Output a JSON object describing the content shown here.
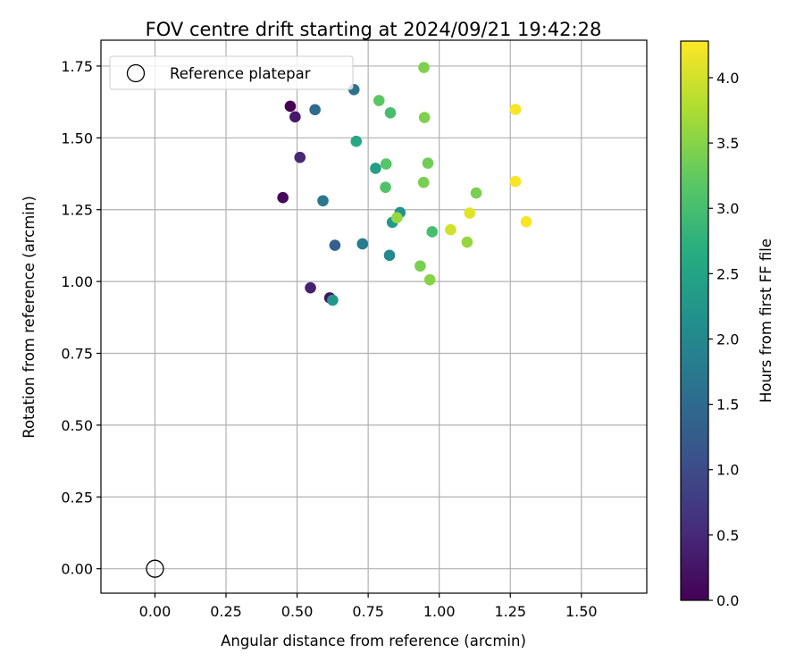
{
  "chart_data": {
    "type": "scatter",
    "title": "FOV centre drift starting at 2024/09/21 19:42:28",
    "xlabel": "Angular distance from reference (arcmin)",
    "ylabel": "Rotation from reference (arcmin)",
    "xlim": [
      -0.19,
      1.73
    ],
    "ylim": [
      -0.085,
      1.84
    ],
    "xticks": [
      "0.00",
      "0.25",
      "0.50",
      "0.75",
      "1.00",
      "1.25",
      "1.50"
    ],
    "xtick_values": [
      0,
      0.25,
      0.5,
      0.75,
      1.0,
      1.25,
      1.5
    ],
    "yticks": [
      "0.00",
      "0.25",
      "0.50",
      "0.75",
      "1.00",
      "1.25",
      "1.50",
      "1.75"
    ],
    "ytick_values": [
      0,
      0.25,
      0.5,
      0.75,
      1.0,
      1.25,
      1.5,
      1.75
    ],
    "grid": true,
    "legend": {
      "position": "top-left",
      "entries": [
        {
          "label": "Reference platepar",
          "marker": "open-circle"
        }
      ]
    },
    "reference_point": {
      "x": 0.0,
      "y": 0.0
    },
    "colorbar": {
      "label": "Hours from first FF file",
      "colormap": "viridis",
      "range": [
        0.0,
        4.28
      ],
      "ticks": [
        "0.0",
        "0.5",
        "1.0",
        "1.5",
        "2.0",
        "2.5",
        "3.0",
        "3.5",
        "4.0"
      ],
      "tick_values": [
        0.0,
        0.5,
        1.0,
        1.5,
        2.0,
        2.5,
        3.0,
        3.5,
        4.0
      ]
    },
    "points": [
      {
        "x": 0.476,
        "y": 1.61,
        "c": 0.0
      },
      {
        "x": 0.45,
        "y": 1.292,
        "c": 0.1
      },
      {
        "x": 0.615,
        "y": 0.943,
        "c": 0.2
      },
      {
        "x": 0.493,
        "y": 1.573,
        "c": 0.3
      },
      {
        "x": 0.547,
        "y": 0.978,
        "c": 0.4
      },
      {
        "x": 0.51,
        "y": 1.432,
        "c": 0.5
      },
      {
        "x": 0.633,
        "y": 1.126,
        "c": 1.3
      },
      {
        "x": 0.563,
        "y": 1.598,
        "c": 1.5
      },
      {
        "x": 0.7,
        "y": 1.668,
        "c": 1.6
      },
      {
        "x": 0.591,
        "y": 1.281,
        "c": 1.7
      },
      {
        "x": 0.73,
        "y": 1.131,
        "c": 1.8
      },
      {
        "x": 0.825,
        "y": 1.091,
        "c": 2.0
      },
      {
        "x": 0.862,
        "y": 1.24,
        "c": 2.2
      },
      {
        "x": 0.625,
        "y": 0.935,
        "c": 2.25
      },
      {
        "x": 0.835,
        "y": 1.206,
        "c": 2.3
      },
      {
        "x": 0.776,
        "y": 1.394,
        "c": 2.4
      },
      {
        "x": 0.708,
        "y": 1.488,
        "c": 2.6
      },
      {
        "x": 0.828,
        "y": 1.587,
        "c": 3.0
      },
      {
        "x": 0.975,
        "y": 1.173,
        "c": 3.0
      },
      {
        "x": 0.811,
        "y": 1.328,
        "c": 3.1
      },
      {
        "x": 0.813,
        "y": 1.409,
        "c": 3.15
      },
      {
        "x": 0.788,
        "y": 1.63,
        "c": 3.2
      },
      {
        "x": 0.96,
        "y": 1.412,
        "c": 3.35
      },
      {
        "x": 0.945,
        "y": 1.345,
        "c": 3.4
      },
      {
        "x": 0.933,
        "y": 1.054,
        "c": 3.4
      },
      {
        "x": 1.13,
        "y": 1.308,
        "c": 3.4
      },
      {
        "x": 0.946,
        "y": 1.745,
        "c": 3.45
      },
      {
        "x": 0.948,
        "y": 1.571,
        "c": 3.45
      },
      {
        "x": 0.967,
        "y": 1.006,
        "c": 3.5
      },
      {
        "x": 0.851,
        "y": 1.222,
        "c": 3.6
      },
      {
        "x": 1.098,
        "y": 1.137,
        "c": 3.6
      },
      {
        "x": 1.04,
        "y": 1.18,
        "c": 4.0
      },
      {
        "x": 1.107,
        "y": 1.238,
        "c": 4.1
      },
      {
        "x": 1.268,
        "y": 1.599,
        "c": 4.25
      },
      {
        "x": 1.268,
        "y": 1.348,
        "c": 4.25
      },
      {
        "x": 1.306,
        "y": 1.208,
        "c": 4.25
      }
    ]
  }
}
